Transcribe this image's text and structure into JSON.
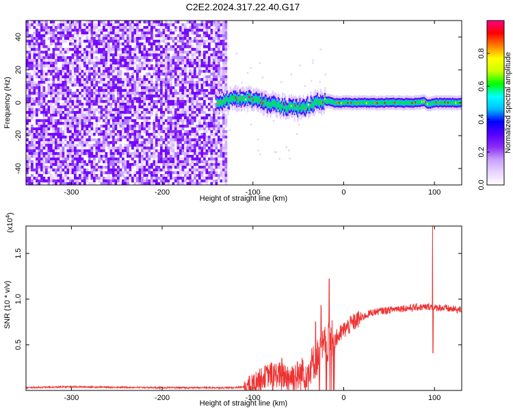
{
  "title": "C2E2.2024.317.22.40.G17",
  "chart_data": [
    {
      "type": "heatmap",
      "name": "spectrogram",
      "xlabel": "Height of straight line (km)",
      "ylabel": "Frequency (Hz)",
      "xlim": [
        -350,
        130
      ],
      "ylim": [
        -50,
        50
      ],
      "xticks": [
        -300,
        -200,
        -100,
        0,
        100
      ],
      "yticks": [
        -40,
        -20,
        0,
        20,
        40
      ],
      "noise_region_x": [
        -350,
        -130
      ],
      "signal_track": {
        "x": [
          -140,
          -125,
          -110,
          -95,
          -80,
          -70,
          -60,
          -50,
          -40,
          -30,
          -22,
          -18,
          -10,
          0,
          20,
          40,
          60,
          80,
          88,
          92,
          100,
          130
        ],
        "freq_hz": [
          0,
          2,
          3,
          1,
          -1,
          -2,
          -3,
          -3,
          -2,
          0,
          1,
          1,
          0,
          0,
          0,
          0,
          0,
          0,
          1,
          -1,
          0,
          0
        ]
      },
      "colorbar": {
        "label": "Normalized spectral amplitude",
        "range": [
          0,
          1
        ],
        "ticks": [
          "0.0",
          "0.2",
          "0.4",
          "0.6",
          "0.8"
        ]
      },
      "colormap": [
        "#ffffff",
        "#e8d4ff",
        "#c8a0ff",
        "#8b2cf5",
        "#5500ff",
        "#0000ff",
        "#00bfff",
        "#00ffff",
        "#00ff00",
        "#ccff00",
        "#ffff00",
        "#ff8000",
        "#ff0000",
        "#ff0080"
      ]
    },
    {
      "type": "line",
      "name": "snr",
      "xlabel": "Height of straight line (km)",
      "ylabel": "SNR (10 * v/v)",
      "multiplier": "(x10",
      "multiplier_exp": "4",
      "multiplier_close": ")",
      "xlim": [
        -350,
        130
      ],
      "ylim": [
        0,
        1.8
      ],
      "xticks": [
        -300,
        -200,
        -100,
        0,
        100
      ],
      "yticks": [
        "0.5",
        "1.0",
        "1.5"
      ],
      "color": "#ee3333",
      "envelope": {
        "x": [
          -350,
          -300,
          -200,
          -150,
          -120,
          -110,
          -100,
          -90,
          -80,
          -70,
          -60,
          -50,
          -40,
          -30,
          -25,
          -20,
          -15,
          -10,
          -5,
          0,
          10,
          20,
          30,
          40,
          50,
          60,
          70,
          80,
          90,
          95,
          100,
          105,
          110,
          120,
          130
        ],
        "y": [
          0.03,
          0.04,
          0.03,
          0.03,
          0.03,
          0.04,
          0.08,
          0.14,
          0.18,
          0.17,
          0.15,
          0.16,
          0.22,
          0.35,
          0.42,
          0.5,
          0.52,
          0.55,
          0.6,
          0.66,
          0.74,
          0.8,
          0.85,
          0.87,
          0.88,
          0.9,
          0.9,
          0.91,
          0.91,
          0.92,
          0.9,
          0.91,
          0.9,
          0.89,
          0.88
        ]
      },
      "spikes": [
        {
          "x": -68,
          "y": 0.35
        },
        {
          "x": -45,
          "y": 0.33
        },
        {
          "x": -31,
          "y": 0.75
        },
        {
          "x": -25,
          "y": 0.93
        },
        {
          "x": -16,
          "y": 1.22
        },
        {
          "x": 98,
          "y": 1.82
        },
        {
          "x": 98.5,
          "y": 0.41
        }
      ]
    }
  ]
}
